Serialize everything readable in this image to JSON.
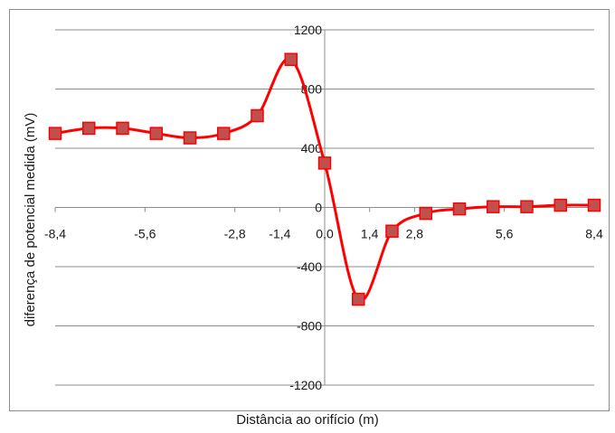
{
  "chart_data": {
    "type": "line",
    "title": "",
    "xlabel": "Distância ao orifício (m)",
    "ylabel": "diferença de potencial medida (mV)",
    "xlim": [
      -8.4,
      8.4
    ],
    "ylim": [
      -1200,
      1200
    ],
    "x_ticks": [
      -8.4,
      -5.6,
      -2.8,
      -1.4,
      0.0,
      1.4,
      2.8,
      5.6,
      8.4
    ],
    "x_tick_labels": [
      "-8,4",
      "-5,6",
      "-2,8",
      "-1,4",
      "0,0",
      "1,4",
      "2,8",
      "5,6",
      "8,4"
    ],
    "y_ticks": [
      -1200,
      -800,
      -400,
      0,
      400,
      800,
      1200
    ],
    "y_tick_labels": [
      "-1200",
      "-800",
      "-400",
      "0",
      "400",
      "800",
      "1200"
    ],
    "grid": "horizontal",
    "legend": "none",
    "series": [
      {
        "color": "#ff0000",
        "marker_color": "#c0504d",
        "x": [
          -8.4,
          -7.35,
          -6.3,
          -5.25,
          -4.2,
          -3.15,
          -2.1,
          -1.05,
          0.0,
          1.05,
          2.1,
          3.15,
          4.2,
          5.25,
          6.3,
          7.35,
          8.4
        ],
        "values": [
          500,
          535,
          535,
          500,
          470,
          500,
          620,
          1000,
          300,
          -620,
          -160,
          -40,
          -10,
          5,
          5,
          15,
          15
        ]
      }
    ]
  }
}
